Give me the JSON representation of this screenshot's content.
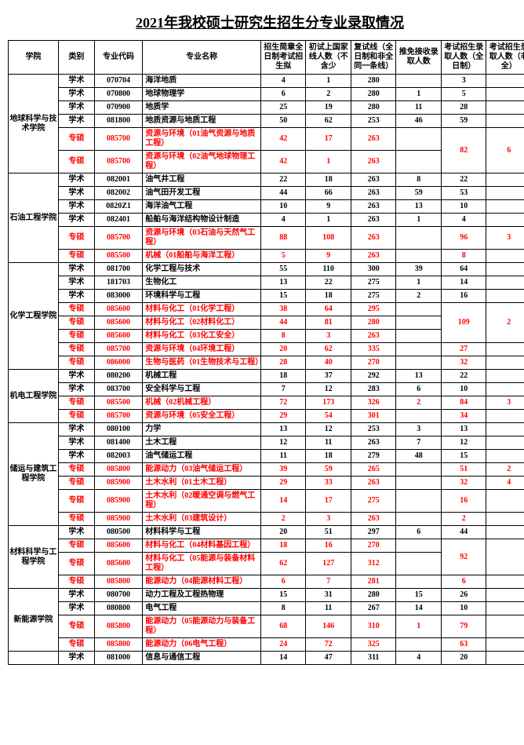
{
  "title": "2021年我校硕士研究生招生分专业录取情况",
  "headers": [
    "学院",
    "类别",
    "专业代码",
    "专业名称",
    "招生简章全日制考试招生拟",
    "初试上国家线人数（不含少",
    "复试线（全日制和非全同一条线）",
    "推免接收录取人数",
    "考试招生录取人数（全日制）",
    "考试招生录取人数（非全）"
  ],
  "rows": [
    {
      "college": "地球科学与技术学院",
      "collegeSpan": 6,
      "type": "学术",
      "code": "070704",
      "name": "海洋地质",
      "c1": "4",
      "c2": "1",
      "c3": "280",
      "c4": "",
      "c5": "3",
      "c6": ""
    },
    {
      "type": "学术",
      "code": "070800",
      "name": "地球物理学",
      "c1": "6",
      "c2": "2",
      "c3": "280",
      "c4": "1",
      "c5": "5",
      "c6": ""
    },
    {
      "type": "学术",
      "code": "070900",
      "name": "地质学",
      "c1": "25",
      "c2": "19",
      "c3": "280",
      "c4": "11",
      "c5": "28",
      "c6": ""
    },
    {
      "type": "学术",
      "code": "081800",
      "name": "地质资源与地质工程",
      "c1": "50",
      "c2": "62",
      "c3": "253",
      "c4": "46",
      "c5": "59",
      "c6": ""
    },
    {
      "type": "专硕",
      "code": "085700",
      "name": "资源与环境（01油气资源与地质工程）",
      "c1": "42",
      "c2": "17",
      "c3": "263",
      "c4": "",
      "c5": "82",
      "c5Span": 2,
      "c6": "6",
      "c6Span": 2,
      "red": true
    },
    {
      "type": "专硕",
      "code": "085700",
      "name": "资源与环境（02油气地球物理工程）",
      "c1": "42",
      "c2": "1",
      "c3": "263",
      "c4": "",
      "red": true,
      "skip56": true
    },
    {
      "college": "石油工程学院",
      "collegeSpan": 6,
      "type": "学术",
      "code": "082001",
      "name": "油气井工程",
      "c1": "22",
      "c2": "18",
      "c3": "263",
      "c4": "8",
      "c5": "22",
      "c6": ""
    },
    {
      "type": "学术",
      "code": "082002",
      "name": "油气田开发工程",
      "c1": "44",
      "c2": "66",
      "c3": "263",
      "c4": "59",
      "c5": "53",
      "c6": ""
    },
    {
      "type": "学术",
      "code": "0820Z1",
      "name": "海洋油气工程",
      "c1": "10",
      "c2": "9",
      "c3": "263",
      "c4": "13",
      "c5": "10",
      "c6": ""
    },
    {
      "type": "学术",
      "code": "082401",
      "name": "船舶与海洋结构物设计制造",
      "c1": "4",
      "c2": "1",
      "c3": "263",
      "c4": "1",
      "c5": "4",
      "c6": ""
    },
    {
      "type": "专硕",
      "code": "085700",
      "name": "资源与环境（03石油与天然气工程）",
      "c1": "88",
      "c2": "108",
      "c3": "263",
      "c4": "",
      "c5": "96",
      "c6": "3",
      "red": true
    },
    {
      "type": "专硕",
      "code": "085500",
      "name": "机械（01船舶与海洋工程）",
      "c1": "5",
      "c2": "9",
      "c3": "263",
      "c4": "",
      "c5": "8",
      "c6": "",
      "red": true
    },
    {
      "college": "化学工程学院",
      "collegeSpan": 8,
      "type": "学术",
      "code": "081700",
      "name": "化学工程与技术",
      "c1": "55",
      "c2": "110",
      "c3": "300",
      "c4": "39",
      "c5": "64",
      "c6": ""
    },
    {
      "type": "学术",
      "code": "181703",
      "name": "生物化工",
      "c1": "13",
      "c2": "22",
      "c3": "275",
      "c4": "1",
      "c5": "14",
      "c6": ""
    },
    {
      "type": "学术",
      "code": "083000",
      "name": "环境科学与工程",
      "c1": "15",
      "c2": "18",
      "c3": "275",
      "c4": "2",
      "c5": "16",
      "c6": ""
    },
    {
      "type": "专硕",
      "code": "085600",
      "name": "材料与化工（01化学工程）",
      "c1": "38",
      "c2": "64",
      "c3": "295",
      "c4": "",
      "c5": "109",
      "c5Span": 3,
      "c6": "2",
      "c6Span": 3,
      "red": true
    },
    {
      "type": "专硕",
      "code": "085600",
      "name": "材料与化工（02材料化工）",
      "c1": "44",
      "c2": "81",
      "c3": "280",
      "c4": "",
      "red": true,
      "skip56": true
    },
    {
      "type": "专硕",
      "code": "085600",
      "name": "材料与化工（03化工安全）",
      "c1": "8",
      "c2": "3",
      "c3": "263",
      "c4": "",
      "red": true,
      "skip56": true
    },
    {
      "type": "专硕",
      "code": "085700",
      "name": "资源与环境（04环境工程）",
      "c1": "20",
      "c2": "62",
      "c3": "335",
      "c4": "",
      "c5": "27",
      "c6": "",
      "red": true
    },
    {
      "type": "专硕",
      "code": "086000",
      "name": "生物与医药（01生物技术与工程）",
      "c1": "28",
      "c2": "40",
      "c3": "270",
      "c4": "",
      "c5": "32",
      "c6": "",
      "red": true
    },
    {
      "college": "机电工程学院",
      "collegeSpan": 4,
      "type": "学术",
      "code": "080200",
      "name": "机械工程",
      "c1": "18",
      "c2": "37",
      "c3": "292",
      "c4": "13",
      "c5": "22",
      "c6": ""
    },
    {
      "type": "学术",
      "code": "083700",
      "name": "安全科学与工程",
      "c1": "7",
      "c2": "12",
      "c3": "283",
      "c4": "6",
      "c5": "10",
      "c6": ""
    },
    {
      "type": "专硕",
      "code": "085500",
      "name": "机械（02机械工程）",
      "c1": "72",
      "c2": "173",
      "c3": "326",
      "c4": "2",
      "c5": "84",
      "c6": "3",
      "red": true
    },
    {
      "type": "专硕",
      "code": "085700",
      "name": "资源与环境（05安全工程）",
      "c1": "29",
      "c2": "54",
      "c3": "301",
      "c4": "",
      "c5": "34",
      "c6": "",
      "red": true
    },
    {
      "college": "储运与建筑工程学院",
      "collegeSpan": 7,
      "type": "学术",
      "code": "080100",
      "name": "力学",
      "c1": "13",
      "c2": "12",
      "c3": "253",
      "c4": "3",
      "c5": "13",
      "c6": ""
    },
    {
      "type": "学术",
      "code": "081400",
      "name": "土木工程",
      "c1": "12",
      "c2": "11",
      "c3": "263",
      "c4": "7",
      "c5": "12",
      "c6": ""
    },
    {
      "type": "学术",
      "code": "082003",
      "name": "油气储运工程",
      "c1": "11",
      "c2": "18",
      "c3": "279",
      "c4": "48",
      "c5": "15",
      "c6": ""
    },
    {
      "type": "专硕",
      "code": "085800",
      "name": "能源动力（03油气储运工程）",
      "c1": "39",
      "c2": "59",
      "c3": "265",
      "c4": "",
      "c5": "51",
      "c6": "2",
      "red": true
    },
    {
      "type": "专硕",
      "code": "085900",
      "name": "土木水利（01土木工程）",
      "c1": "29",
      "c2": "33",
      "c3": "263",
      "c4": "",
      "c5": "32",
      "c6": "4",
      "red": true
    },
    {
      "type": "专硕",
      "code": "085900",
      "name": "土木水利（02暖通空调与燃气工程）",
      "c1": "14",
      "c2": "17",
      "c3": "275",
      "c4": "",
      "c5": "16",
      "c6": "",
      "red": true
    },
    {
      "type": "专硕",
      "code": "085900",
      "name": "土木水利（03建筑设计）",
      "c1": "2",
      "c2": "3",
      "c3": "263",
      "c4": "",
      "c5": "2",
      "c6": "",
      "red": true
    },
    {
      "college": "材料科学与工程学院",
      "collegeSpan": 4,
      "type": "学术",
      "code": "080500",
      "name": "材料科学与工程",
      "c1": "20",
      "c2": "51",
      "c3": "297",
      "c4": "6",
      "c5": "44",
      "c6": ""
    },
    {
      "type": "专硕",
      "code": "085600",
      "name": "材料与化工（04材料基因工程）",
      "c1": "18",
      "c2": "16",
      "c3": "270",
      "c4": "",
      "c5": "92",
      "c5Span": 2,
      "c6": "",
      "c6Span": 2,
      "red": true
    },
    {
      "type": "专硕",
      "code": "085600",
      "name": "材料与化工（05能源与装备材料工程）",
      "c1": "62",
      "c2": "127",
      "c3": "312",
      "c4": "",
      "red": true,
      "skip56": true
    },
    {
      "type": "专硕",
      "code": "085800",
      "name": "能源动力（04能源材料工程）",
      "c1": "6",
      "c2": "7",
      "c3": "281",
      "c4": "",
      "c5": "6",
      "c6": "",
      "red": true
    },
    {
      "college": "新能源学院",
      "collegeSpan": 4,
      "type": "学术",
      "code": "080700",
      "name": "动力工程及工程热物理",
      "c1": "15",
      "c2": "31",
      "c3": "280",
      "c4": "15",
      "c5": "26",
      "c6": ""
    },
    {
      "type": "学术",
      "code": "080800",
      "name": "电气工程",
      "c1": "8",
      "c2": "11",
      "c3": "267",
      "c4": "14",
      "c5": "10",
      "c6": ""
    },
    {
      "type": "专硕",
      "code": "085800",
      "name": "能源动力（05能源动力与装备工程）",
      "c1": "68",
      "c2": "146",
      "c3": "310",
      "c4": "1",
      "c5": "79",
      "c6": "",
      "red": true
    },
    {
      "type": "专硕",
      "code": "085800",
      "name": "能源动力（06电气工程）",
      "c1": "24",
      "c2": "72",
      "c3": "325",
      "c4": "",
      "c5": "63",
      "c6": "",
      "red": true
    },
    {
      "college": "",
      "collegeSpan": 1,
      "type": "学术",
      "code": "081000",
      "name": "信息与通信工程",
      "c1": "14",
      "c2": "47",
      "c3": "311",
      "c4": "4",
      "c5": "20",
      "c6": ""
    }
  ]
}
